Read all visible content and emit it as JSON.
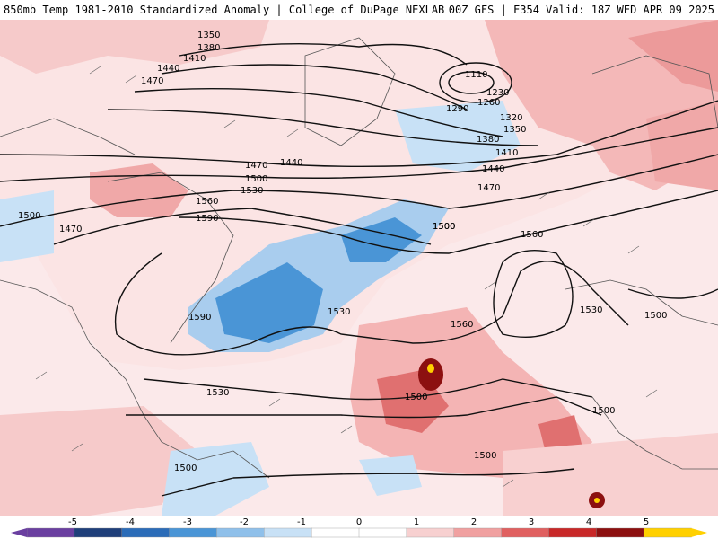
{
  "header": {
    "left": "850mb Temp 1981-2010 Standardized Anomaly | College of DuPage NEXLAB",
    "right": "00Z GFS | F354 Valid: 18Z WED APR 09 2025"
  },
  "colorbar": {
    "tick_labels": [
      "-5",
      "-4",
      "-3",
      "-2",
      "-1",
      "0",
      "1",
      "2",
      "3",
      "4",
      "5"
    ],
    "colors": [
      "#6a3fa0",
      "#1f3f7a",
      "#2b6cb8",
      "#4a95d6",
      "#8fc0ea",
      "#c8e1f6",
      "#ffffff",
      "#ffffff",
      "#f7d0d0",
      "#f0a0a0",
      "#e06060",
      "#c82828",
      "#8c1010",
      "#ffd000"
    ]
  },
  "contours": {
    "labels": [
      "1350",
      "1380",
      "1410",
      "1440",
      "1470",
      "1110",
      "1230",
      "1260",
      "1290",
      "1320",
      "1350",
      "1380",
      "1410",
      "1440",
      "1470",
      "1500",
      "1470",
      "1440",
      "1500",
      "1530",
      "1560",
      "1590",
      "1500",
      "1470",
      "1500",
      "1560",
      "1530",
      "1500",
      "1590",
      "1560",
      "1530",
      "1530",
      "1500",
      "1500",
      "1500",
      "1500"
    ]
  }
}
